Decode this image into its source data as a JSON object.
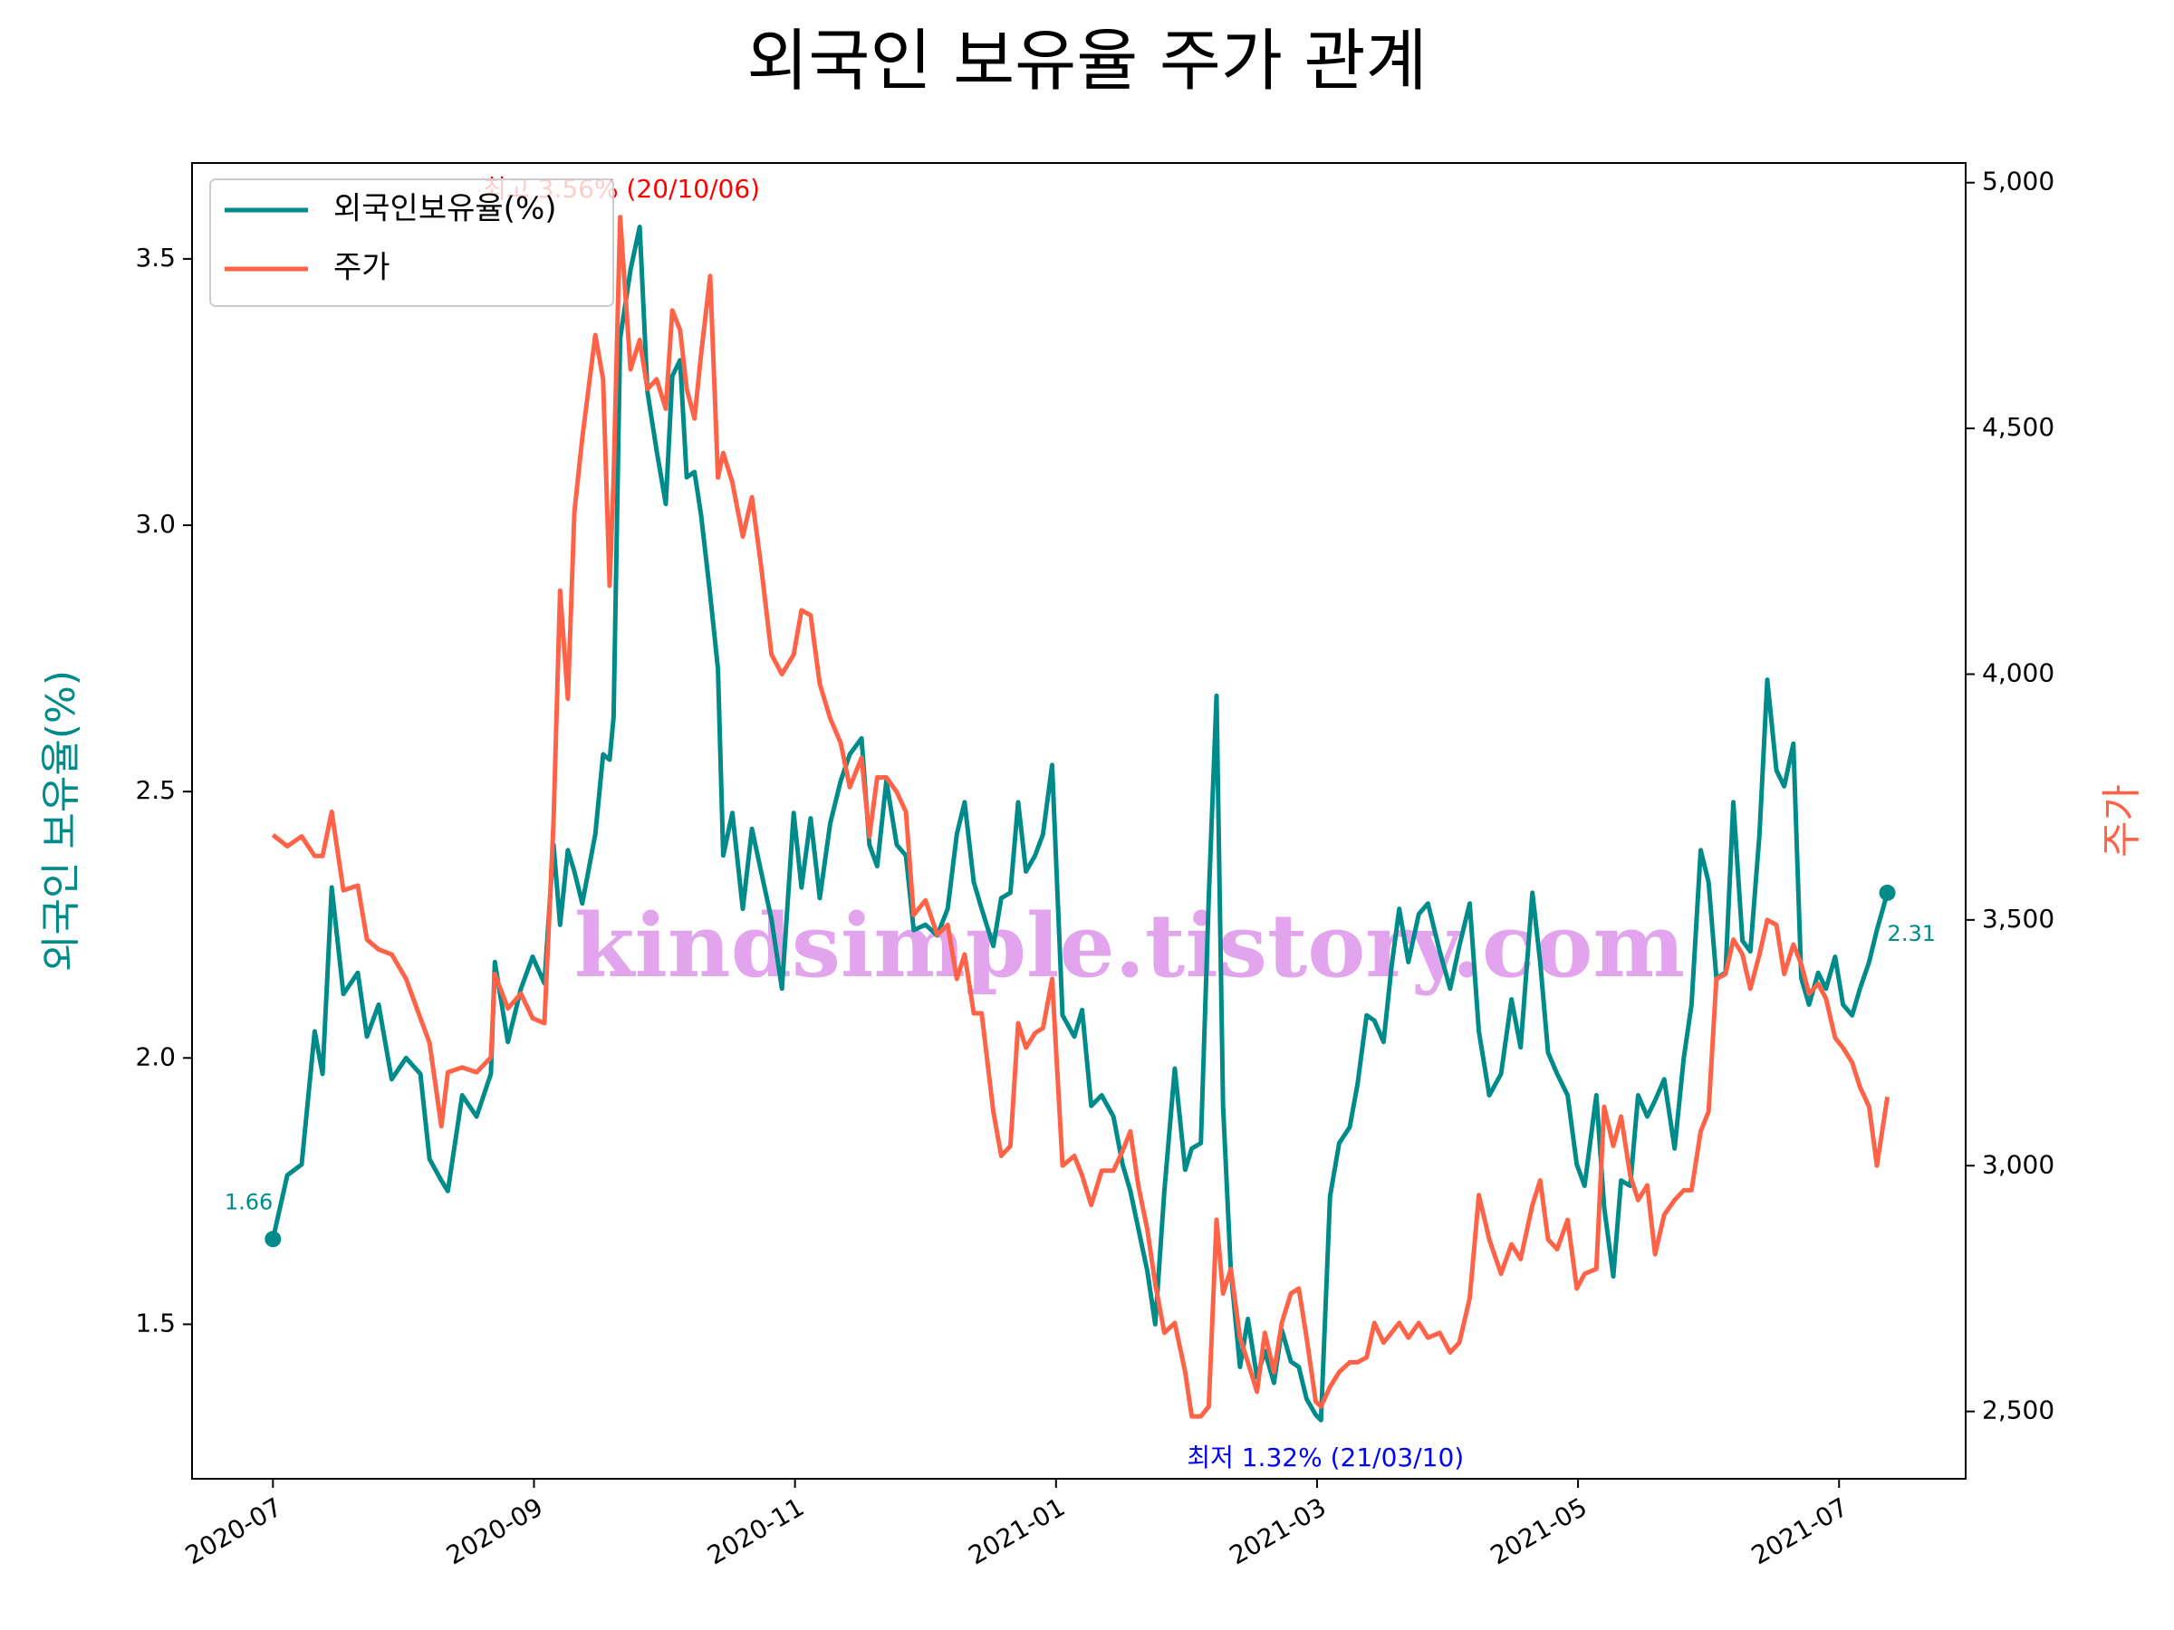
{
  "chart_data": {
    "type": "line",
    "title": "외국인 보유율 주가 관계",
    "ylabel": "외국인 보유율(%)",
    "y2label": "주가",
    "watermark": "kindsimple.tistory.com",
    "legend": "upper left",
    "annotations": [
      "최고 3.56% (20/10/06)",
      "최저 1.32% (21/03/10)",
      "1.66",
      "2.31"
    ],
    "xlim": [
      -0.62,
      12.97
    ],
    "xticks": [
      {
        "value": 0,
        "label": "2020-07"
      },
      {
        "value": 2,
        "label": "2020-09"
      },
      {
        "value": 4,
        "label": "2020-11"
      },
      {
        "value": 6,
        "label": "2021-01"
      },
      {
        "value": 8,
        "label": "2021-03"
      },
      {
        "value": 10,
        "label": "2021-05"
      },
      {
        "value": 12,
        "label": "2021-07"
      }
    ],
    "ylim": [
      1.21,
      3.68
    ],
    "yticks": [
      1.5,
      {
        "value": 2,
        "label": "2.0"
      },
      2.5,
      {
        "value": 3,
        "label": "3.0"
      },
      3.5
    ],
    "y2lim": [
      2363,
      5040
    ],
    "y2ticks": [
      {
        "value": 2500,
        "label": "2,500"
      },
      {
        "value": 3000,
        "label": "3,000"
      },
      {
        "value": 3500,
        "label": "3,500"
      },
      {
        "value": 4000,
        "label": "4,000"
      },
      {
        "value": 4500,
        "label": "4,500"
      },
      {
        "value": 5000,
        "label": "5,000"
      }
    ],
    "grid": false,
    "x": [
      0.0,
      0.11,
      0.22,
      0.32,
      0.38,
      0.45,
      0.54,
      0.65,
      0.72,
      0.81,
      0.91,
      1.02,
      1.13,
      1.2,
      1.29,
      1.34,
      1.45,
      1.56,
      1.67,
      1.7,
      1.8,
      1.9,
      1.99,
      2.08,
      2.15,
      2.2,
      2.26,
      2.31,
      2.37,
      2.47,
      2.53,
      2.58,
      2.61,
      2.66,
      2.74,
      2.81,
      2.87,
      2.94,
      3.01,
      3.06,
      3.12,
      3.17,
      3.23,
      3.28,
      3.35,
      3.41,
      3.45,
      3.52,
      3.6,
      3.67,
      3.74,
      3.82,
      3.9,
      3.99,
      4.05,
      4.12,
      4.19,
      4.27,
      4.35,
      4.42,
      4.51,
      4.57,
      4.63,
      4.7,
      4.78,
      4.85,
      4.91,
      5.0,
      5.09,
      5.17,
      5.24,
      5.3,
      5.37,
      5.43,
      5.52,
      5.58,
      5.65,
      5.71,
      5.77,
      5.84,
      5.9,
      5.97,
      6.05,
      6.14,
      6.2,
      6.27,
      6.35,
      6.44,
      6.51,
      6.57,
      6.63,
      6.7,
      6.76,
      6.83,
      6.91,
      6.99,
      7.04,
      7.11,
      7.17,
      7.23,
      7.28,
      7.34,
      7.41,
      7.47,
      7.54,
      7.6,
      7.67,
      7.73,
      7.8,
      7.86,
      7.92,
      7.99,
      8.03,
      8.1,
      8.17,
      8.25,
      8.31,
      8.38,
      8.44,
      8.51,
      8.57,
      8.63,
      8.7,
      8.78,
      8.85,
      8.94,
      9.02,
      9.09,
      9.17,
      9.24,
      9.32,
      9.41,
      9.49,
      9.56,
      9.65,
      9.71,
      9.77,
      9.84,
      9.92,
      9.99,
      10.05,
      10.14,
      10.2,
      10.27,
      10.33,
      10.4,
      10.46,
      10.53,
      10.59,
      10.66,
      10.74,
      10.81,
      10.87,
      10.94,
      11.0,
      11.06,
      11.13,
      11.19,
      11.26,
      11.32,
      11.39,
      11.45,
      11.52,
      11.58,
      11.65,
      11.71,
      11.77,
      11.84,
      11.9,
      11.97,
      12.03,
      12.1,
      12.16,
      12.23,
      12.29,
      12.37
    ],
    "series": [
      {
        "name": "외국인보유율(%)",
        "color": "#008b8b",
        "axis": "y",
        "values": [
          1.66,
          1.78,
          1.8,
          2.05,
          1.97,
          2.32,
          2.12,
          2.16,
          2.04,
          2.1,
          1.96,
          2.0,
          1.97,
          1.81,
          1.77,
          1.75,
          1.93,
          1.89,
          1.97,
          2.18,
          2.03,
          2.13,
          2.19,
          2.14,
          2.4,
          2.25,
          2.39,
          2.35,
          2.29,
          2.42,
          2.57,
          2.56,
          2.64,
          3.35,
          3.48,
          3.56,
          3.25,
          3.14,
          3.04,
          3.28,
          3.31,
          3.09,
          3.1,
          3.02,
          2.87,
          2.73,
          2.38,
          2.46,
          2.28,
          2.43,
          2.35,
          2.26,
          2.13,
          2.46,
          2.32,
          2.45,
          2.3,
          2.44,
          2.52,
          2.57,
          2.6,
          2.4,
          2.36,
          2.52,
          2.4,
          2.38,
          2.24,
          2.25,
          2.23,
          2.28,
          2.42,
          2.48,
          2.33,
          2.28,
          2.21,
          2.3,
          2.31,
          2.48,
          2.35,
          2.38,
          2.42,
          2.55,
          2.08,
          2.04,
          2.09,
          1.91,
          1.93,
          1.89,
          1.8,
          1.75,
          1.68,
          1.6,
          1.5,
          1.75,
          1.98,
          1.79,
          1.83,
          1.84,
          2.3,
          2.68,
          1.91,
          1.6,
          1.42,
          1.51,
          1.4,
          1.45,
          1.39,
          1.49,
          1.43,
          1.42,
          1.36,
          1.33,
          1.32,
          1.74,
          1.84,
          1.87,
          1.95,
          2.08,
          2.07,
          2.03,
          2.17,
          2.28,
          2.18,
          2.27,
          2.29,
          2.2,
          2.13,
          2.21,
          2.29,
          2.05,
          1.93,
          1.97,
          2.11,
          2.02,
          2.31,
          2.18,
          2.01,
          1.97,
          1.93,
          1.8,
          1.76,
          1.93,
          1.72,
          1.59,
          1.77,
          1.76,
          1.93,
          1.89,
          1.92,
          1.96,
          1.83,
          2.0,
          2.1,
          2.39,
          2.33,
          2.15,
          2.16,
          2.48,
          2.22,
          2.2,
          2.42,
          2.71,
          2.54,
          2.51,
          2.59,
          2.15,
          2.1,
          2.16,
          2.13,
          2.19,
          2.1,
          2.08,
          2.13,
          2.18,
          2.24,
          2.31
        ]
      },
      {
        "name": "주가",
        "color": "#ff6347",
        "axis": "y2",
        "values": [
          3673,
          3650,
          3670,
          3630,
          3630,
          3720,
          3560,
          3570,
          3460,
          3440,
          3430,
          3380,
          3300,
          3250,
          3080,
          3190,
          3200,
          3190,
          3220,
          3390,
          3320,
          3350,
          3300,
          3290,
          3700,
          4170,
          3950,
          4330,
          4480,
          4690,
          4600,
          4180,
          4400,
          4930,
          4620,
          4680,
          4580,
          4600,
          4540,
          4740,
          4700,
          4580,
          4520,
          4650,
          4810,
          4400,
          4450,
          4390,
          4280,
          4360,
          4220,
          4040,
          4000,
          4040,
          4130,
          4120,
          3980,
          3910,
          3860,
          3770,
          3830,
          3670,
          3790,
          3790,
          3760,
          3720,
          3510,
          3540,
          3470,
          3490,
          3380,
          3430,
          3310,
          3310,
          3110,
          3020,
          3040,
          3290,
          3240,
          3270,
          3280,
          3380,
          3000,
          3020,
          2980,
          2920,
          2990,
          2990,
          3030,
          3070,
          2960,
          2870,
          2760,
          2660,
          2680,
          2580,
          2490,
          2490,
          2510,
          2890,
          2740,
          2790,
          2650,
          2600,
          2540,
          2660,
          2580,
          2680,
          2740,
          2750,
          2650,
          2520,
          2510,
          2550,
          2580,
          2600,
          2600,
          2610,
          2680,
          2640,
          2660,
          2680,
          2650,
          2680,
          2650,
          2660,
          2620,
          2640,
          2730,
          2940,
          2850,
          2780,
          2840,
          2810,
          2920,
          2970,
          2850,
          2830,
          2890,
          2750,
          2780,
          2790,
          3120,
          3040,
          3100,
          2980,
          2930,
          2960,
          2820,
          2900,
          2930,
          2950,
          2950,
          3070,
          3110,
          3380,
          3390,
          3460,
          3430,
          3360,
          3430,
          3500,
          3490,
          3390,
          3450,
          3410,
          3350,
          3370,
          3340,
          3260,
          3240,
          3210,
          3160,
          3120,
          3000,
          3140
        ]
      }
    ]
  }
}
